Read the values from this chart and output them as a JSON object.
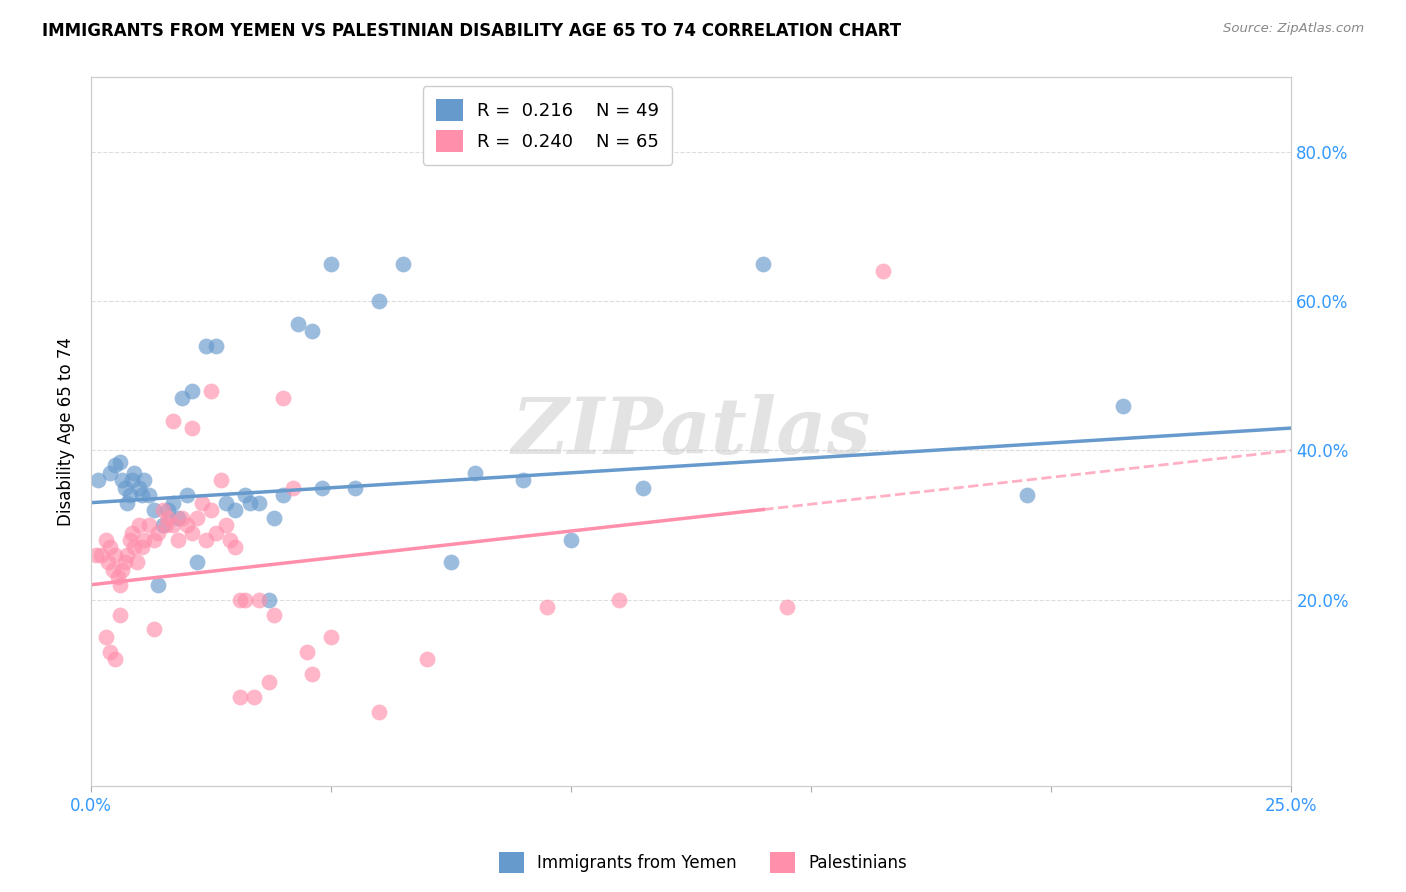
{
  "title": "IMMIGRANTS FROM YEMEN VS PALESTINIAN DISABILITY AGE 65 TO 74 CORRELATION CHART",
  "source": "Source: ZipAtlas.com",
  "ylabel": "Disability Age 65 to 74",
  "xlim": [
    0.0,
    25.0
  ],
  "ylim": [
    -5.0,
    90.0
  ],
  "yticks": [
    20.0,
    40.0,
    60.0,
    80.0
  ],
  "xticks": [
    0.0,
    5.0,
    10.0,
    15.0,
    20.0,
    25.0
  ],
  "xtick_labels": [
    "0.0%",
    "",
    "",
    "",
    "",
    "25.0%"
  ],
  "legend_blue_r": "0.216",
  "legend_blue_n": "49",
  "legend_pink_r": "0.240",
  "legend_pink_n": "65",
  "color_blue": "#6699CC",
  "color_pink": "#FF8FAB",
  "watermark": "ZIPatlas",
  "blue_scatter_x": [
    0.15,
    0.4,
    0.5,
    0.6,
    0.65,
    0.7,
    0.75,
    0.8,
    0.85,
    0.9,
    1.0,
    1.05,
    1.1,
    1.2,
    1.3,
    1.4,
    1.5,
    1.6,
    1.7,
    1.8,
    2.0,
    2.2,
    2.4,
    2.6,
    2.8,
    3.0,
    3.2,
    3.5,
    3.7,
    4.0,
    4.3,
    4.6,
    5.0,
    5.5,
    6.0,
    6.5,
    7.5,
    8.0,
    9.0,
    10.0,
    11.5,
    14.0,
    19.5,
    21.5,
    1.9,
    2.1,
    3.3,
    3.8,
    4.8
  ],
  "blue_scatter_y": [
    36.0,
    37.0,
    38.0,
    38.5,
    36.0,
    35.0,
    33.0,
    34.0,
    36.0,
    37.0,
    35.0,
    34.0,
    36.0,
    34.0,
    32.0,
    22.0,
    30.0,
    32.0,
    33.0,
    31.0,
    34.0,
    25.0,
    54.0,
    54.0,
    33.0,
    32.0,
    34.0,
    33.0,
    20.0,
    34.0,
    57.0,
    56.0,
    65.0,
    35.0,
    60.0,
    65.0,
    25.0,
    37.0,
    36.0,
    28.0,
    35.0,
    65.0,
    34.0,
    46.0,
    47.0,
    48.0,
    33.0,
    31.0,
    35.0
  ],
  "pink_scatter_x": [
    0.1,
    0.2,
    0.3,
    0.35,
    0.4,
    0.45,
    0.5,
    0.55,
    0.6,
    0.65,
    0.7,
    0.75,
    0.8,
    0.85,
    0.9,
    0.95,
    1.0,
    1.05,
    1.1,
    1.2,
    1.3,
    1.4,
    1.5,
    1.55,
    1.6,
    1.7,
    1.8,
    1.9,
    2.0,
    2.1,
    2.2,
    2.3,
    2.4,
    2.5,
    2.6,
    2.7,
    2.8,
    2.9,
    3.0,
    3.1,
    3.2,
    3.5,
    3.8,
    4.0,
    4.2,
    4.5,
    5.0,
    6.0,
    7.0,
    9.5,
    11.0,
    14.5,
    16.5,
    0.3,
    0.4,
    0.5,
    0.6,
    2.5,
    3.1,
    3.4,
    3.7,
    4.6,
    1.7,
    2.1,
    1.3
  ],
  "pink_scatter_y": [
    26.0,
    26.0,
    28.0,
    25.0,
    27.0,
    24.0,
    26.0,
    23.0,
    22.0,
    24.0,
    25.0,
    26.0,
    28.0,
    29.0,
    27.0,
    25.0,
    30.0,
    27.0,
    28.0,
    30.0,
    28.0,
    29.0,
    32.0,
    30.0,
    31.0,
    30.0,
    28.0,
    31.0,
    30.0,
    29.0,
    31.0,
    33.0,
    28.0,
    32.0,
    29.0,
    36.0,
    30.0,
    28.0,
    27.0,
    20.0,
    20.0,
    20.0,
    18.0,
    47.0,
    35.0,
    13.0,
    15.0,
    5.0,
    12.0,
    19.0,
    20.0,
    19.0,
    64.0,
    15.0,
    13.0,
    12.0,
    18.0,
    48.0,
    7.0,
    7.0,
    9.0,
    10.0,
    44.0,
    43.0,
    16.0
  ]
}
